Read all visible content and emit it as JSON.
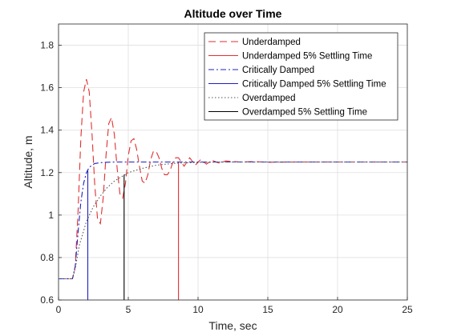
{
  "chart_data": {
    "type": "line",
    "title": "Altitude over Time",
    "xlabel": "Time, sec",
    "ylabel": "Altitude, m",
    "xlim": [
      0,
      25
    ],
    "ylim": [
      0.6,
      1.9
    ],
    "x_ticks": [
      0,
      5,
      10,
      15,
      20,
      25
    ],
    "y_ticks": [
      0.6,
      0.8,
      1.0,
      1.2,
      1.4,
      1.6,
      1.8
    ],
    "y_tick_labels": [
      "0.6",
      "0.8",
      "1",
      "1.2",
      "1.4",
      "1.6",
      "1.8"
    ],
    "grid": true,
    "legend_position": "top-right",
    "series": [
      {
        "name": "Underdamped",
        "color": "#e03030",
        "dash": "dashed",
        "x": [
          0,
          1.0,
          1.2,
          1.4,
          1.6,
          1.8,
          2.0,
          2.2,
          2.4,
          2.6,
          2.8,
          3.0,
          3.2,
          3.4,
          3.6,
          3.8,
          4.0,
          4.2,
          4.4,
          4.6,
          4.8,
          5.0,
          5.2,
          5.4,
          5.6,
          5.8,
          6.0,
          6.2,
          6.4,
          6.6,
          6.8,
          7.0,
          7.2,
          7.4,
          7.6,
          7.8,
          8.0,
          8.2,
          8.4,
          8.6,
          8.8,
          9.0,
          9.4,
          9.8,
          10.2,
          10.6,
          11.0,
          11.5,
          12.0,
          13.0,
          14.0,
          15.0,
          17.0,
          20.0,
          25.0
        ],
        "y": [
          0.7,
          0.7,
          0.76,
          1.02,
          1.36,
          1.58,
          1.64,
          1.58,
          1.38,
          1.14,
          0.98,
          0.96,
          1.08,
          1.28,
          1.43,
          1.46,
          1.38,
          1.22,
          1.1,
          1.08,
          1.15,
          1.28,
          1.35,
          1.36,
          1.31,
          1.23,
          1.16,
          1.15,
          1.19,
          1.26,
          1.3,
          1.3,
          1.27,
          1.22,
          1.19,
          1.19,
          1.21,
          1.25,
          1.27,
          1.27,
          1.25,
          1.23,
          1.27,
          1.235,
          1.262,
          1.24,
          1.258,
          1.245,
          1.255,
          1.25,
          1.252,
          1.249,
          1.25,
          1.25,
          1.25
        ]
      },
      {
        "name": "Underdamped 5% Settling Time",
        "color": "#e03030",
        "dash": "solid",
        "x": [
          8.6,
          8.6
        ],
        "y": [
          0.6,
          1.25
        ]
      },
      {
        "name": "Critically Damped",
        "color": "#2020c0",
        "dash": "dashdot",
        "x": [
          0,
          1.0,
          1.2,
          1.4,
          1.6,
          1.8,
          2.0,
          2.2,
          2.4,
          2.6,
          3.0,
          3.5,
          4.0,
          5.0,
          25.0
        ],
        "y": [
          0.7,
          0.7,
          0.76,
          0.92,
          1.06,
          1.15,
          1.2,
          1.225,
          1.235,
          1.243,
          1.247,
          1.249,
          1.25,
          1.25,
          1.25
        ]
      },
      {
        "name": "Critically Damped 5% Settling Time",
        "color": "#2020c0",
        "dash": "solid",
        "x": [
          2.1,
          2.1
        ],
        "y": [
          0.6,
          1.21
        ]
      },
      {
        "name": "Overdamped",
        "color": "#555555",
        "dash": "dotted",
        "x": [
          0,
          1.0,
          1.2,
          1.5,
          2.0,
          2.5,
          3.0,
          3.5,
          4.0,
          4.5,
          5.0,
          5.5,
          6.0,
          7.0,
          8.0,
          9.0,
          10.0,
          12.0,
          15.0,
          25.0
        ],
        "y": [
          0.7,
          0.7,
          0.75,
          0.86,
          0.97,
          1.04,
          1.09,
          1.13,
          1.16,
          1.18,
          1.2,
          1.21,
          1.22,
          1.235,
          1.242,
          1.246,
          1.248,
          1.25,
          1.25,
          1.25
        ]
      },
      {
        "name": "Overdamped 5% Settling Time",
        "color": "#000000",
        "dash": "solid",
        "x": [
          4.7,
          4.7
        ],
        "y": [
          0.6,
          1.19
        ]
      }
    ]
  }
}
